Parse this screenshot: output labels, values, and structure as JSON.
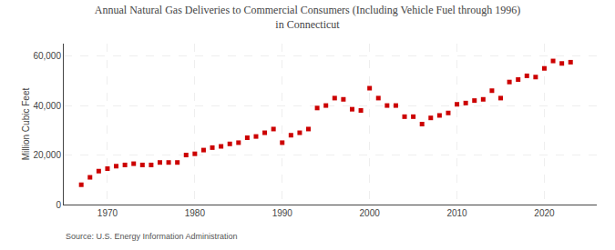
{
  "chart_data": {
    "type": "scatter",
    "title": "Annual Natural Gas Deliveries to Commercial Consumers (Including Vehicle Fuel through 1996)\nin Connecticut",
    "ylabel": "Million Cubic Feet",
    "source": "Source: U.S. Energy Information Administration",
    "color": "#cc0000",
    "marker": "square",
    "grid": true,
    "x": [
      1967,
      1968,
      1969,
      1970,
      1971,
      1972,
      1973,
      1974,
      1975,
      1976,
      1977,
      1978,
      1979,
      1980,
      1981,
      1982,
      1983,
      1984,
      1985,
      1986,
      1987,
      1988,
      1989,
      1990,
      1991,
      1992,
      1993,
      1994,
      1995,
      1996,
      1997,
      1998,
      1999,
      2000,
      2001,
      2002,
      2003,
      2004,
      2005,
      2006,
      2007,
      2008,
      2009,
      2010,
      2011,
      2012,
      2013,
      2014,
      2015,
      2016,
      2017,
      2018,
      2019,
      2020,
      2021,
      2022,
      2023
    ],
    "values": [
      8000,
      11000,
      13500,
      14500,
      15500,
      16000,
      16500,
      16000,
      16000,
      17000,
      17000,
      17000,
      20000,
      20500,
      22000,
      23000,
      23500,
      24500,
      25000,
      27000,
      27500,
      29000,
      30500,
      25000,
      28000,
      29000,
      30500,
      39000,
      40000,
      43000,
      42500,
      38500,
      38000,
      47000,
      43000,
      40000,
      40000,
      35500,
      35500,
      32500,
      35000,
      36000,
      37000,
      40500,
      41000,
      42000,
      42500,
      46000,
      43000,
      49500,
      50500,
      52000,
      51500,
      55000,
      58000,
      57000,
      57500
    ],
    "xlim": [
      1965,
      2026
    ],
    "xticks": [
      1970,
      1980,
      1990,
      2000,
      2010,
      2020
    ],
    "ylim": [
      0,
      65000
    ],
    "yticks": [
      0,
      {
        "value": 20000,
        "label": "20,000"
      },
      {
        "value": 40000,
        "label": "40,000"
      },
      {
        "value": 60000,
        "label": "60,000"
      }
    ]
  }
}
